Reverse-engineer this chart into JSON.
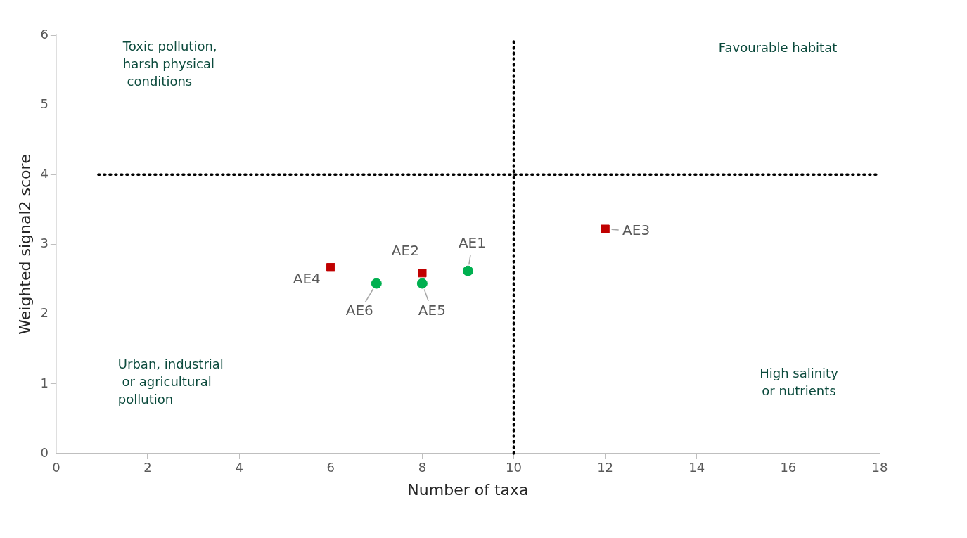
{
  "chart_data": {
    "type": "scatter",
    "xlabel": "Number of taxa",
    "ylabel": "Weighted signal2 score",
    "series": [
      {
        "color": "#c00000",
        "marker": "square",
        "x": [
          6,
          8,
          12
        ],
        "values": [
          2.67,
          2.59,
          3.22
        ],
        "value_labels": [
          "AE4",
          "AE2",
          "AE3"
        ]
      },
      {
        "color": "#00b050",
        "marker": "circle",
        "x": [
          7,
          8,
          9
        ],
        "values": [
          2.44,
          2.44,
          2.62
        ],
        "value_labels": [
          "AE6",
          "AE5",
          "AE1"
        ]
      }
    ],
    "xlim": [
      0,
      18
    ],
    "xticks": [
      0,
      2,
      4,
      6,
      8,
      10,
      12,
      14,
      16,
      18
    ],
    "ylim": [
      0,
      6
    ],
    "yticks": [
      0,
      1,
      2,
      3,
      4,
      5,
      6
    ],
    "grid": false,
    "legend": false,
    "ref_lines": [
      {
        "axis": "y",
        "value": 4,
        "line_style": "dotted",
        "color": "#000000"
      },
      {
        "axis": "x",
        "value": 10,
        "line_style": "dotted",
        "color": "#000000"
      }
    ],
    "annotations": [
      "Toxic pollution,\nharsh physical\n conditions",
      "Favourable habitat",
      "Urban, industrial\n or agricultural\npollution",
      "High salinity\nor nutrients"
    ]
  }
}
